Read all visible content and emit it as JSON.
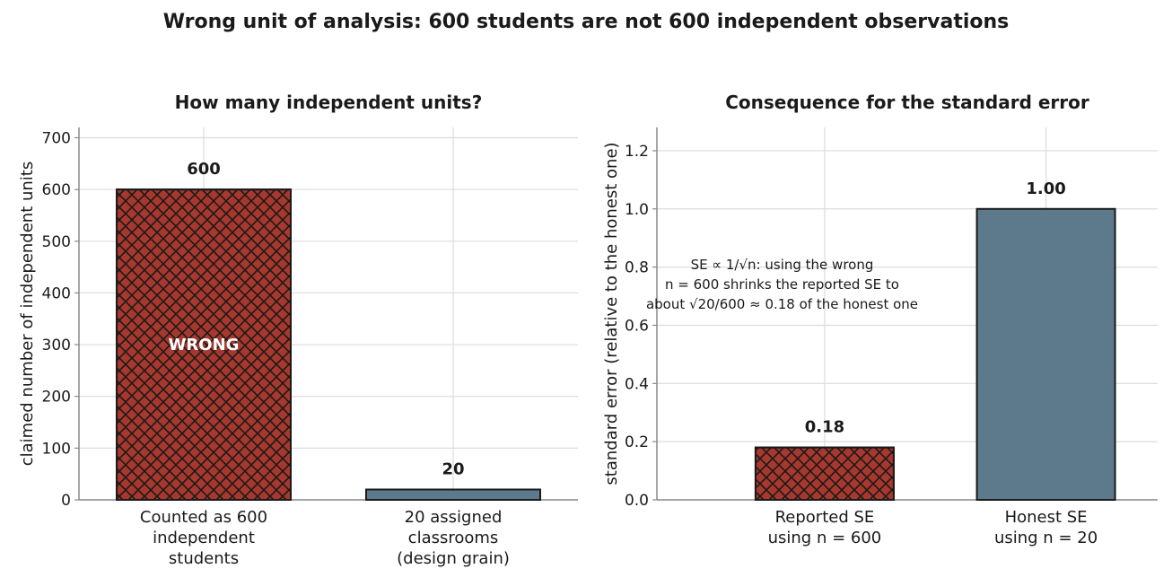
{
  "title": "Wrong unit of analysis: 600 students are not 600 independent observations",
  "colors": {
    "wrong": "#a8382d",
    "honest": "#5c7a8c",
    "edge": "#1a1a1a",
    "grid": "#dcdcdc",
    "axis": "#8a8a8a"
  },
  "chart_data": [
    {
      "type": "bar",
      "title": "How many independent units?",
      "ylabel": "claimed number of independent units",
      "ylim": [
        0,
        720
      ],
      "yticks": [
        0,
        100,
        200,
        300,
        400,
        500,
        600,
        700
      ],
      "grid": true,
      "categories": [
        [
          "Counted as 600",
          "independent",
          "students"
        ],
        [
          "20 assigned",
          "classrooms",
          "(design grain)"
        ]
      ],
      "values": [
        600,
        20
      ],
      "value_labels": [
        "600",
        "20"
      ],
      "bar_styles": [
        "wrong",
        "honest"
      ],
      "inside_labels": [
        "WRONG",
        ""
      ]
    },
    {
      "type": "bar",
      "title": "Consequence for the standard error",
      "ylabel": "standard error (relative to the honest one)",
      "ylim": [
        0,
        1.28
      ],
      "yticks": [
        "0.0",
        "0.2",
        "0.4",
        "0.6",
        "0.8",
        "1.0",
        "1.2"
      ],
      "grid": true,
      "categories": [
        [
          "Reported SE",
          "using n = 600"
        ],
        [
          "Honest SE",
          "using n = 20"
        ]
      ],
      "values": [
        0.18,
        1.0
      ],
      "value_labels": [
        "0.18",
        "1.00"
      ],
      "bar_styles": [
        "wrong",
        "honest"
      ],
      "annotation": [
        "SE ∝ 1/√n: using the wrong",
        "n = 600 shrinks the reported SE to",
        "about √20/600 ≈ 0.18 of the honest one"
      ]
    }
  ]
}
